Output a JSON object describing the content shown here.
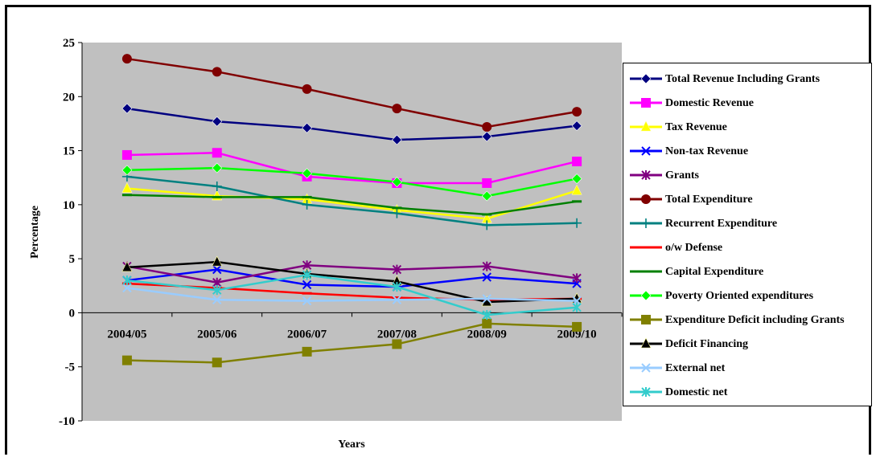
{
  "chart_data": {
    "type": "line",
    "title": "",
    "xlabel": "Years",
    "ylabel": "Percentage",
    "ylim": [
      -10,
      25
    ],
    "yticks": [
      "-10",
      "-5",
      "0",
      "5",
      "10",
      "15",
      "20",
      "25"
    ],
    "categories": [
      "2004/05",
      "2005/06",
      "2006/07",
      "2007/08",
      "2008/09",
      "2009/10"
    ],
    "grid": false,
    "legend_position": "right",
    "plot_background": "#c0c0c0",
    "series": [
      {
        "name": "Total Revenue Including Grants",
        "color": "#000080",
        "marker": "diamond",
        "values": [
          18.9,
          17.7,
          17.1,
          16.0,
          16.3,
          17.3
        ]
      },
      {
        "name": "Domestic Revenue",
        "color": "#ff00ff",
        "marker": "square",
        "values": [
          14.6,
          14.8,
          12.6,
          12.0,
          12.0,
          14.0
        ]
      },
      {
        "name": "Tax Revenue",
        "color": "#ffff00",
        "marker": "triangle",
        "values": [
          11.5,
          10.8,
          10.5,
          9.5,
          8.7,
          11.3
        ]
      },
      {
        "name": "Non-tax Revenue",
        "color": "#0000ff",
        "marker": "x",
        "values": [
          3.0,
          4.0,
          2.6,
          2.4,
          3.3,
          2.7
        ]
      },
      {
        "name": "Grants",
        "color": "#800080",
        "marker": "asterisk",
        "values": [
          4.3,
          2.8,
          4.4,
          4.0,
          4.3,
          3.2
        ]
      },
      {
        "name": "Total Expenditure",
        "color": "#800000",
        "marker": "circle",
        "values": [
          23.5,
          22.3,
          20.7,
          18.9,
          17.2,
          18.6
        ]
      },
      {
        "name": "Recurrent Expenditure",
        "color": "#008080",
        "marker": "plus",
        "values": [
          12.6,
          11.7,
          10.0,
          9.2,
          8.1,
          8.3
        ]
      },
      {
        "name": "o/w Defense",
        "color": "#ff0000",
        "marker": "dash",
        "values": [
          2.7,
          2.3,
          1.8,
          1.4,
          1.2,
          1.3
        ]
      },
      {
        "name": "Capital Expenditure",
        "color": "#008000",
        "marker": "dash",
        "values": [
          10.9,
          10.7,
          10.7,
          9.7,
          9.1,
          10.3
        ]
      },
      {
        "name": "Poverty Oriented expenditures",
        "color": "#00ff00",
        "marker": "diamond",
        "values": [
          13.2,
          13.4,
          12.9,
          12.1,
          10.8,
          12.4
        ]
      },
      {
        "name": "Expenditure Deficit including Grants",
        "color": "#808000",
        "marker": "square",
        "values": [
          -4.4,
          -4.6,
          -3.6,
          -2.9,
          -1.0,
          -1.3
        ]
      },
      {
        "name": "Deficit Financing",
        "color": "#000000",
        "marker": "triangle",
        "values": [
          4.2,
          4.7,
          3.6,
          2.9,
          1.0,
          1.3
        ]
      },
      {
        "name": "External net",
        "color": "#99ccff",
        "marker": "x",
        "values": [
          2.3,
          1.2,
          1.1,
          1.2,
          1.3,
          1.1
        ]
      },
      {
        "name": "Domestic net",
        "color": "#33cccc",
        "marker": "asterisk",
        "values": [
          3.0,
          2.1,
          3.5,
          2.4,
          -0.2,
          0.5
        ]
      }
    ]
  }
}
